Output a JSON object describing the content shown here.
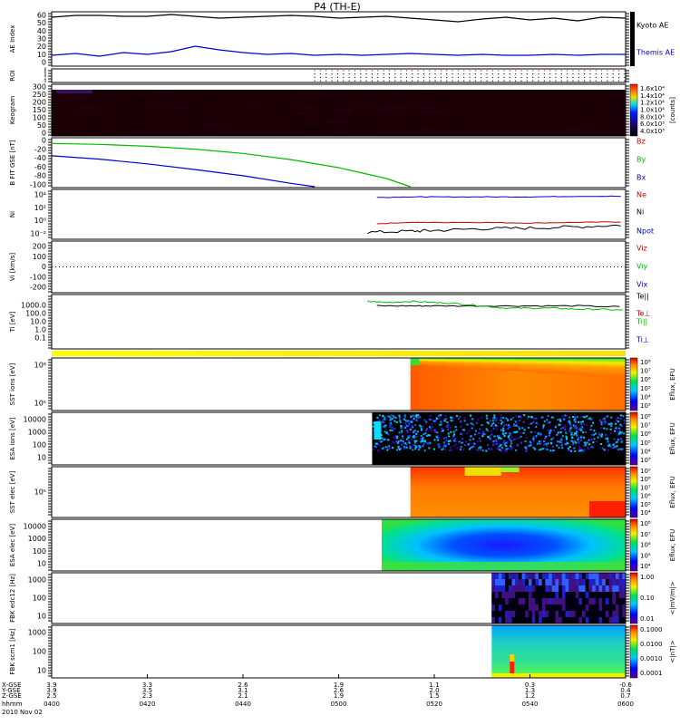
{
  "title": "P4 (TH-E)",
  "date_label": "2010 Nov 02",
  "x_row_labels": [
    "X-GSE",
    "Y-GSE",
    "Z-GSE",
    "hhmm"
  ],
  "x_ticks": [
    {
      "hhmm": "0400",
      "x": "3.9",
      "y": "3.9",
      "z": "2.5"
    },
    {
      "hhmm": "0420",
      "x": "3.3",
      "y": "3.5",
      "z": "2.3"
    },
    {
      "hhmm": "0440",
      "x": "2.6",
      "y": "3.1",
      "z": "2.1"
    },
    {
      "hhmm": "0500",
      "x": "1.9",
      "y": "2.6",
      "z": "1.9"
    },
    {
      "hhmm": "0520",
      "x": "1.1",
      "y": "2.0",
      "z": "1.5"
    },
    {
      "hhmm": "0540",
      "x": "0.3",
      "y": "1.3",
      "z": "1.2"
    },
    {
      "hhmm": "0600",
      "x": "-0.6",
      "y": "0.4",
      "z": "0.7"
    }
  ],
  "colorbars": {
    "keogram": {
      "labels": [
        "1.6x10⁴",
        "1.4x10⁴",
        "1.2x10⁴",
        "1.0x10⁴",
        "8.0x10³",
        "6.0x10³",
        "4.0x10³"
      ],
      "unit": "[counts]"
    },
    "sst_ion": {
      "labels": [
        "10⁸",
        "10⁷",
        "10⁶",
        "10⁵",
        "10⁴",
        "10³"
      ],
      "unit": "Eflux, EFU"
    },
    "esa_ion": {
      "labels": [
        "10⁸",
        "10⁷",
        "10⁶",
        "10⁵",
        "10⁴",
        "10³"
      ],
      "unit": "Eflux, EFU"
    },
    "sst_elec": {
      "labels": [
        "10⁹",
        "10⁸",
        "10⁷",
        "10⁶",
        "10⁵",
        "10⁴"
      ],
      "unit": "Eflux, EFU"
    },
    "esa_elec": {
      "labels": [
        "10⁸",
        "10⁷",
        "10⁶",
        "10⁵",
        "10⁴"
      ],
      "unit": "Eflux, EFU"
    },
    "fbk_edc": {
      "labels": [
        "1.00",
        "0.10",
        "0.01"
      ],
      "unit": "<|mV/m|>"
    },
    "fbk_scm": {
      "labels": [
        "0.1000",
        "0.0100",
        "0.0010",
        "0.0001"
      ],
      "unit": "<|nT|>"
    }
  },
  "chart_data": [
    {
      "type": "line",
      "panel": "ae_index",
      "ylabel": "AE Index",
      "yticks": [
        "60",
        "50",
        "40",
        "30",
        "20",
        "10",
        "0"
      ],
      "ylim": [
        0,
        60
      ],
      "series": [
        {
          "name": "Kyoto AE",
          "color": "#000000",
          "x": [
            0,
            5,
            10,
            15,
            20,
            25,
            30,
            35,
            40,
            45,
            50,
            55,
            60,
            65,
            70,
            75,
            80,
            85,
            90,
            95,
            100,
            105,
            110,
            115,
            120
          ],
          "values": [
            54,
            56,
            56,
            55,
            55,
            57,
            55,
            53,
            54,
            55,
            56,
            55,
            53,
            54,
            55,
            53,
            51,
            49,
            52,
            54,
            51,
            53,
            50,
            54,
            53
          ]
        },
        {
          "name": "Themis AE",
          "color": "#0000cc",
          "x": [
            0,
            5,
            10,
            15,
            20,
            25,
            30,
            35,
            40,
            45,
            50,
            55,
            60,
            65,
            70,
            75,
            80,
            85,
            90,
            95,
            100,
            105,
            110,
            115,
            120
          ],
          "values": [
            12,
            14,
            11,
            15,
            13,
            16,
            22,
            18,
            15,
            13,
            14,
            12,
            13,
            12,
            13,
            14,
            13,
            12,
            13,
            12,
            12,
            13,
            12,
            13,
            13
          ]
        }
      ]
    },
    {
      "type": "scatter",
      "panel": "roi",
      "ylabel": "ROI",
      "yticks": [
        "8",
        "6",
        "4",
        "2",
        "0"
      ],
      "series": [
        {
          "name": "",
          "color": "#cc0000",
          "x_start": 55,
          "x_end": 120,
          "values": [
            7
          ]
        },
        {
          "name": "",
          "color": "#000000",
          "x_start": 55,
          "x_end": 120,
          "values": [
            5,
            3,
            1
          ]
        }
      ]
    },
    {
      "type": "heatmap",
      "panel": "keogram",
      "ylabel": "Keogram",
      "yticks": [
        "300",
        "250",
        "200",
        "150",
        "100",
        "50",
        "0"
      ],
      "ylim": [
        0,
        300
      ]
    },
    {
      "type": "line",
      "panel": "b_field",
      "ylabel": "B FIT GSE [nT]",
      "yticks": [
        "0",
        "-20",
        "-40",
        "-60",
        "-80",
        "-100"
      ],
      "ylim": [
        -105,
        0
      ],
      "series": [
        {
          "name": "Bz",
          "color": "#cc0000",
          "x": [],
          "values": []
        },
        {
          "name": "By",
          "color": "#00bb00",
          "x": [
            0,
            10,
            20,
            30,
            40,
            50,
            60,
            70,
            75
          ],
          "values": [
            -12,
            -14,
            -18,
            -24,
            -33,
            -46,
            -63,
            -86,
            -103
          ]
        },
        {
          "name": "Bx",
          "color": "#0000cc",
          "x": [
            0,
            10,
            20,
            30,
            40,
            50,
            55
          ],
          "values": [
            -38,
            -45,
            -55,
            -67,
            -80,
            -96,
            -103
          ]
        }
      ]
    },
    {
      "type": "line",
      "panel": "density",
      "ylabel": "Ni",
      "yticks": [
        "10⁴",
        "10²",
        "10⁰",
        "10⁻²"
      ],
      "ylim": [
        -3,
        5
      ],
      "yscale": "log",
      "series": [
        {
          "name": "Ne",
          "color": "#cc0000",
          "x": [
            68,
            75,
            80,
            90,
            100,
            110,
            120
          ],
          "values": [
            -0.5,
            -0.3,
            -0.3,
            -0.3,
            -0.4,
            -0.3,
            -0.2
          ]
        },
        {
          "name": "Ni",
          "color": "#000000",
          "x": [
            66,
            75,
            80,
            90,
            100,
            110,
            120
          ],
          "values": [
            -1.9,
            -1.7,
            -1.6,
            -1.3,
            -1.2,
            -1.0,
            -0.7
          ]
        },
        {
          "name": "Npot",
          "color": "#0000cc",
          "x": [
            68,
            75,
            80,
            90,
            100,
            110,
            120
          ],
          "values": [
            3.7,
            3.8,
            3.8,
            3.8,
            3.8,
            3.9,
            3.9
          ]
        }
      ]
    },
    {
      "type": "line",
      "panel": "velocity",
      "ylabel": "Vi [km/s]",
      "yticks": [
        "200",
        "100",
        "0",
        "-100",
        "-200"
      ],
      "ylim": [
        -280,
        280
      ],
      "series": [
        {
          "name": "Viz",
          "color": "#cc0000",
          "x": [],
          "values": []
        },
        {
          "name": "Viy",
          "color": "#00bb00",
          "x": [],
          "values": []
        },
        {
          "name": "Vix",
          "color": "#0000cc",
          "x": [],
          "values": []
        }
      ]
    },
    {
      "type": "line",
      "panel": "temperature",
      "ylabel": "Ti [eV]",
      "yticks": [
        "1000.0",
        "100.0",
        "10.0",
        "1.0",
        "0.1"
      ],
      "ylim": [
        -1.2,
        3.6
      ],
      "yscale": "log",
      "series": [
        {
          "name": "Te||",
          "color": "#000000",
          "x": [
            68,
            75,
            80,
            90,
            100,
            110,
            120
          ],
          "values": [
            2.6,
            2.6,
            2.6,
            2.6,
            2.6,
            2.6,
            2.5
          ]
        },
        {
          "name": "Te⊥",
          "color": "#cc0000",
          "x": [],
          "values": []
        },
        {
          "name": "Ti||",
          "color": "#00bb00",
          "x": [
            66,
            70,
            75,
            80,
            85,
            90,
            95,
            100,
            105,
            110,
            115,
            120
          ],
          "values": [
            3.0,
            2.9,
            3.0,
            2.9,
            2.8,
            2.6,
            2.4,
            2.4,
            2.4,
            2.3,
            2.3,
            2.2
          ]
        },
        {
          "name": "Ti⊥",
          "color": "#0000cc",
          "x": [],
          "values": []
        }
      ]
    },
    {
      "type": "heatmap",
      "panel": "sst_ion",
      "ylabel": "SST ions [eV]",
      "yticks": [
        "10⁶",
        "10⁵"
      ],
      "data_start": 75
    },
    {
      "type": "heatmap",
      "panel": "esa_ion",
      "ylabel": "ESA ions [eV]",
      "yticks": [
        "10000",
        "1000",
        "100",
        "10"
      ],
      "data_start": 67
    },
    {
      "type": "heatmap",
      "panel": "sst_elec",
      "ylabel": "SST elec [eV]",
      "yticks": [
        "10⁵"
      ],
      "data_start": 75
    },
    {
      "type": "heatmap",
      "panel": "esa_elec",
      "ylabel": "ESA elec [eV]",
      "yticks": [
        "10000",
        "1000",
        "100",
        "10"
      ],
      "data_start": 69
    },
    {
      "type": "heatmap",
      "panel": "fbk_edc",
      "ylabel": "FBK edc12 [Hz]",
      "yticks": [
        "1000",
        "100",
        "10"
      ],
      "data_start": 92
    },
    {
      "type": "heatmap",
      "panel": "fbk_scm",
      "ylabel": "FBK scm1 [Hz]",
      "yticks": [
        "1000",
        "100",
        "10"
      ],
      "data_start": 92
    }
  ]
}
